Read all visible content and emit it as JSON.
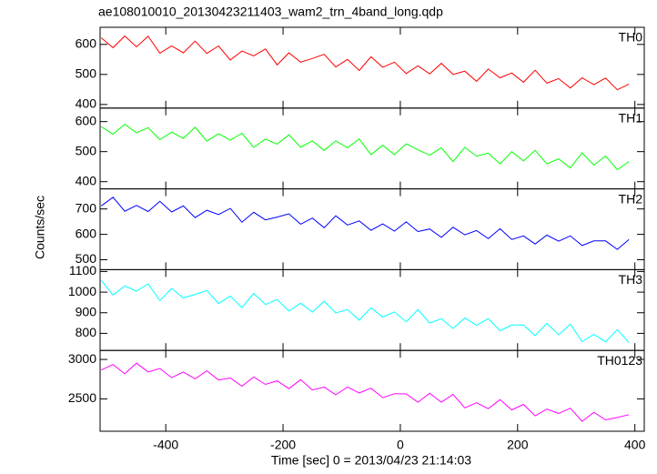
{
  "chart_data": {
    "type": "line",
    "title": "ae108010010_20130423211403_wam2_trn_4band_long.qdp",
    "xlabel": "Time [sec] 0 = 2013/04/23 21:14:03",
    "ylabel": "Counts/sec",
    "xlim": [
      -512,
      416
    ],
    "xticks": [
      -400,
      -200,
      0,
      200,
      400
    ],
    "x": [
      -510,
      -490,
      -470,
      -450,
      -430,
      -410,
      -390,
      -370,
      -350,
      -330,
      -310,
      -290,
      -270,
      -250,
      -230,
      -210,
      -190,
      -170,
      -150,
      -130,
      -110,
      -90,
      -70,
      -50,
      -30,
      -10,
      10,
      30,
      50,
      70,
      90,
      110,
      130,
      150,
      170,
      190,
      210,
      230,
      250,
      270,
      290,
      310,
      330,
      350,
      370,
      390
    ],
    "series": [
      {
        "name": "TH0",
        "color": "#ff0000",
        "ylim": [
          388,
          657
        ],
        "yticks": [
          400,
          500,
          600
        ],
        "values": [
          622,
          589,
          628,
          592,
          627,
          571,
          595,
          572,
          611,
          570,
          595,
          548,
          578,
          562,
          585,
          532,
          572,
          541,
          553,
          567,
          525,
          550,
          513,
          559,
          524,
          541,
          503,
          529,
          502,
          537,
          500,
          511,
          477,
          518,
          489,
          505,
          474,
          514,
          471,
          486,
          455,
          489,
          466,
          488,
          449,
          468
        ]
      },
      {
        "name": "TH1",
        "color": "#00ff00",
        "ylim": [
          376,
          645
        ],
        "yticks": [
          400,
          500,
          600
        ],
        "values": [
          583,
          558,
          591,
          563,
          580,
          540,
          565,
          544,
          581,
          535,
          560,
          538,
          561,
          514,
          542,
          525,
          556,
          515,
          536,
          504,
          536,
          513,
          542,
          490,
          521,
          490,
          526,
          506,
          488,
          513,
          467,
          514,
          485,
          495,
          459,
          500,
          469,
          504,
          459,
          476,
          446,
          496,
          455,
          485,
          440,
          467
        ]
      },
      {
        "name": "TH2",
        "color": "#0000ff",
        "ylim": [
          461,
          779
        ],
        "yticks": [
          500,
          600,
          700
        ],
        "values": [
          712,
          746,
          691,
          714,
          690,
          730,
          688,
          712,
          666,
          695,
          678,
          702,
          648,
          687,
          657,
          668,
          681,
          640,
          664,
          626,
          673,
          637,
          653,
          616,
          641,
          613,
          649,
          611,
          621,
          588,
          628,
          598,
          615,
          583,
          622,
          580,
          594,
          562,
          597,
          573,
          594,
          556,
          574,
          574,
          541,
          580
        ]
      },
      {
        "name": "TH3",
        "color": "#00ffff",
        "ylim": [
          717,
          1109
        ],
        "yticks": [
          800,
          900,
          1000,
          1100
        ],
        "values": [
          1057,
          986,
          1030,
          1005,
          1040,
          959,
          1018,
          972,
          989,
          1008,
          945,
          981,
          925,
          994,
          940,
          964,
          908,
          946,
          903,
          956,
          899,
          915,
          864,
          924,
          879,
          904,
          856,
          915,
          850,
          871,
          824,
          875,
          839,
          871,
          813,
          840,
          840,
          789,
          848,
          793,
          844,
          760,
          795,
          759,
          818,
          755
        ]
      },
      {
        "name": "TH0123",
        "color": "#ff00ff",
        "ylim": [
          2090,
          3114
        ],
        "yticks": [
          2500,
          3000
        ],
        "values": [
          2866,
          2935,
          2818,
          2953,
          2842,
          2886,
          2769,
          2841,
          2754,
          2856,
          2739,
          2766,
          2661,
          2778,
          2684,
          2729,
          2630,
          2744,
          2612,
          2651,
          2552,
          2651,
          2576,
          2635,
          2515,
          2566,
          2563,
          2458,
          2572,
          2458,
          2557,
          2386,
          2451,
          2376,
          2490,
          2361,
          2430,
          2286,
          2370,
          2316,
          2382,
          2216,
          2330,
          2234,
          2264,
          2300
        ]
      }
    ]
  }
}
